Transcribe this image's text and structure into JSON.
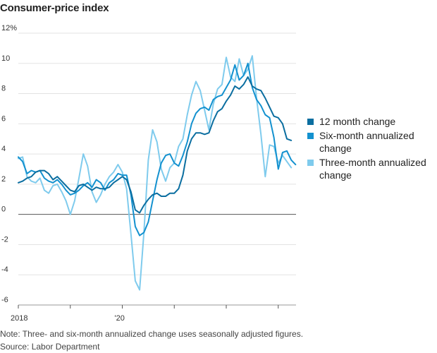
{
  "header": {
    "title": "Consumer-price index"
  },
  "footer": {
    "note": "Note: Three- and six-month annualized change uses seasonally adjusted figures.",
    "source": "Source: Labor Department"
  },
  "chart_data": {
    "type": "line",
    "title": "Consumer-price index",
    "xlabel": "",
    "ylabel": "",
    "x_start": "2018-01",
    "x_end": "2022-12",
    "x_tick_labels": [
      {
        "x": "2018-01",
        "label": "2018"
      },
      {
        "x": "2019-01",
        "label": ""
      },
      {
        "x": "2020-01",
        "label": "'20"
      },
      {
        "x": "2021-01",
        "label": ""
      },
      {
        "x": "2022-01",
        "label": ""
      },
      {
        "x": "2023-01",
        "label": ""
      }
    ],
    "ylim": [
      -6,
      12
    ],
    "y_ticks": [
      {
        "value": 12,
        "label": "12%"
      },
      {
        "value": 10,
        "label": "10"
      },
      {
        "value": 8,
        "label": "8"
      },
      {
        "value": 6,
        "label": "6"
      },
      {
        "value": 4,
        "label": "4"
      },
      {
        "value": 2,
        "label": "2"
      },
      {
        "value": 0,
        "label": "0"
      },
      {
        "value": -2,
        "label": "-2"
      },
      {
        "value": -4,
        "label": "-4"
      },
      {
        "value": -6,
        "label": "-6"
      }
    ],
    "grid": true,
    "legend_position": "right",
    "series": [
      {
        "name": "12 month change",
        "color": "#0b6ea0",
        "values": [
          {
            "x": "2018-01",
            "y": 2.1
          },
          {
            "x": "2018-02",
            "y": 2.2
          },
          {
            "x": "2018-03",
            "y": 2.4
          },
          {
            "x": "2018-04",
            "y": 2.5
          },
          {
            "x": "2018-05",
            "y": 2.8
          },
          {
            "x": "2018-06",
            "y": 2.9
          },
          {
            "x": "2018-07",
            "y": 2.9
          },
          {
            "x": "2018-08",
            "y": 2.7
          },
          {
            "x": "2018-09",
            "y": 2.3
          },
          {
            "x": "2018-10",
            "y": 2.5
          },
          {
            "x": "2018-11",
            "y": 2.2
          },
          {
            "x": "2018-12",
            "y": 1.9
          },
          {
            "x": "2019-01",
            "y": 1.6
          },
          {
            "x": "2019-02",
            "y": 1.5
          },
          {
            "x": "2019-03",
            "y": 1.9
          },
          {
            "x": "2019-04",
            "y": 2.0
          },
          {
            "x": "2019-05",
            "y": 1.8
          },
          {
            "x": "2019-06",
            "y": 1.6
          },
          {
            "x": "2019-07",
            "y": 1.8
          },
          {
            "x": "2019-08",
            "y": 1.7
          },
          {
            "x": "2019-09",
            "y": 1.7
          },
          {
            "x": "2019-10",
            "y": 1.8
          },
          {
            "x": "2019-11",
            "y": 2.1
          },
          {
            "x": "2019-12",
            "y": 2.3
          },
          {
            "x": "2020-01",
            "y": 2.5
          },
          {
            "x": "2020-02",
            "y": 2.3
          },
          {
            "x": "2020-03",
            "y": 1.5
          },
          {
            "x": "2020-04",
            "y": 0.3
          },
          {
            "x": "2020-05",
            "y": 0.1
          },
          {
            "x": "2020-06",
            "y": 0.6
          },
          {
            "x": "2020-07",
            "y": 1.0
          },
          {
            "x": "2020-08",
            "y": 1.3
          },
          {
            "x": "2020-09",
            "y": 1.4
          },
          {
            "x": "2020-10",
            "y": 1.2
          },
          {
            "x": "2020-11",
            "y": 1.2
          },
          {
            "x": "2020-12",
            "y": 1.4
          },
          {
            "x": "2021-01",
            "y": 1.4
          },
          {
            "x": "2021-02",
            "y": 1.7
          },
          {
            "x": "2021-03",
            "y": 2.6
          },
          {
            "x": "2021-04",
            "y": 4.2
          },
          {
            "x": "2021-05",
            "y": 5.0
          },
          {
            "x": "2021-06",
            "y": 5.4
          },
          {
            "x": "2021-07",
            "y": 5.4
          },
          {
            "x": "2021-08",
            "y": 5.3
          },
          {
            "x": "2021-09",
            "y": 5.4
          },
          {
            "x": "2021-10",
            "y": 6.2
          },
          {
            "x": "2021-11",
            "y": 6.8
          },
          {
            "x": "2021-12",
            "y": 7.0
          },
          {
            "x": "2022-01",
            "y": 7.5
          },
          {
            "x": "2022-02",
            "y": 7.9
          },
          {
            "x": "2022-03",
            "y": 8.5
          },
          {
            "x": "2022-04",
            "y": 8.3
          },
          {
            "x": "2022-05",
            "y": 8.6
          },
          {
            "x": "2022-06",
            "y": 9.1
          },
          {
            "x": "2022-07",
            "y": 8.5
          },
          {
            "x": "2022-08",
            "y": 8.3
          },
          {
            "x": "2022-09",
            "y": 8.2
          },
          {
            "x": "2022-10",
            "y": 7.7
          },
          {
            "x": "2022-11",
            "y": 7.1
          },
          {
            "x": "2022-12",
            "y": 6.5
          },
          {
            "x": "2023-01",
            "y": 6.4
          },
          {
            "x": "2023-02",
            "y": 6.0
          },
          {
            "x": "2023-03",
            "y": 5.0
          },
          {
            "x": "2023-04",
            "y": 4.9
          }
        ]
      },
      {
        "name": "Six-month annualized change",
        "color": "#1391cf",
        "values": [
          {
            "x": "2018-01",
            "y": 3.8
          },
          {
            "x": "2018-02",
            "y": 3.5
          },
          {
            "x": "2018-03",
            "y": 2.7
          },
          {
            "x": "2018-04",
            "y": 2.9
          },
          {
            "x": "2018-05",
            "y": 2.8
          },
          {
            "x": "2018-06",
            "y": 2.9
          },
          {
            "x": "2018-07",
            "y": 2.4
          },
          {
            "x": "2018-08",
            "y": 2.2
          },
          {
            "x": "2018-09",
            "y": 2.1
          },
          {
            "x": "2018-10",
            "y": 2.3
          },
          {
            "x": "2018-11",
            "y": 2.0
          },
          {
            "x": "2018-12",
            "y": 1.6
          },
          {
            "x": "2019-01",
            "y": 1.3
          },
          {
            "x": "2019-02",
            "y": 1.4
          },
          {
            "x": "2019-03",
            "y": 1.6
          },
          {
            "x": "2019-04",
            "y": 1.9
          },
          {
            "x": "2019-05",
            "y": 2.1
          },
          {
            "x": "2019-06",
            "y": 1.8
          },
          {
            "x": "2019-07",
            "y": 2.3
          },
          {
            "x": "2019-08",
            "y": 2.1
          },
          {
            "x": "2019-09",
            "y": 1.6
          },
          {
            "x": "2019-10",
            "y": 2.1
          },
          {
            "x": "2019-11",
            "y": 2.3
          },
          {
            "x": "2019-12",
            "y": 2.7
          },
          {
            "x": "2020-01",
            "y": 2.6
          },
          {
            "x": "2020-02",
            "y": 2.6
          },
          {
            "x": "2020-03",
            "y": 1.3
          },
          {
            "x": "2020-04",
            "y": -0.8
          },
          {
            "x": "2020-05",
            "y": -1.4
          },
          {
            "x": "2020-06",
            "y": -1.2
          },
          {
            "x": "2020-07",
            "y": -0.5
          },
          {
            "x": "2020-08",
            "y": 0.9
          },
          {
            "x": "2020-09",
            "y": 2.3
          },
          {
            "x": "2020-10",
            "y": 3.4
          },
          {
            "x": "2020-11",
            "y": 3.9
          },
          {
            "x": "2020-12",
            "y": 4.0
          },
          {
            "x": "2021-01",
            "y": 3.4
          },
          {
            "x": "2021-02",
            "y": 3.2
          },
          {
            "x": "2021-03",
            "y": 3.9
          },
          {
            "x": "2021-04",
            "y": 4.8
          },
          {
            "x": "2021-05",
            "y": 6.0
          },
          {
            "x": "2021-06",
            "y": 6.7
          },
          {
            "x": "2021-07",
            "y": 7.0
          },
          {
            "x": "2021-08",
            "y": 7.1
          },
          {
            "x": "2021-09",
            "y": 6.9
          },
          {
            "x": "2021-10",
            "y": 7.6
          },
          {
            "x": "2021-11",
            "y": 7.8
          },
          {
            "x": "2021-12",
            "y": 7.9
          },
          {
            "x": "2022-01",
            "y": 8.4
          },
          {
            "x": "2022-02",
            "y": 8.9
          },
          {
            "x": "2022-03",
            "y": 9.9
          },
          {
            "x": "2022-04",
            "y": 8.9
          },
          {
            "x": "2022-05",
            "y": 9.2
          },
          {
            "x": "2022-06",
            "y": 10.0
          },
          {
            "x": "2022-07",
            "y": 8.4
          },
          {
            "x": "2022-08",
            "y": 7.6
          },
          {
            "x": "2022-09",
            "y": 7.2
          },
          {
            "x": "2022-10",
            "y": 6.6
          },
          {
            "x": "2022-11",
            "y": 6.4
          },
          {
            "x": "2022-12",
            "y": 5.1
          },
          {
            "x": "2023-01",
            "y": 3.0
          },
          {
            "x": "2023-02",
            "y": 4.1
          },
          {
            "x": "2023-03",
            "y": 4.2
          },
          {
            "x": "2023-04",
            "y": 3.6
          },
          {
            "x": "2023-05",
            "y": 3.3
          }
        ]
      },
      {
        "name": "Three-month annualized change",
        "color": "#7fcbed",
        "values": [
          {
            "x": "2018-01",
            "y": 3.7
          },
          {
            "x": "2018-02",
            "y": 3.8
          },
          {
            "x": "2018-03",
            "y": 2.5
          },
          {
            "x": "2018-04",
            "y": 2.2
          },
          {
            "x": "2018-05",
            "y": 2.1
          },
          {
            "x": "2018-06",
            "y": 2.4
          },
          {
            "x": "2018-07",
            "y": 1.6
          },
          {
            "x": "2018-08",
            "y": 1.4
          },
          {
            "x": "2018-09",
            "y": 1.9
          },
          {
            "x": "2018-10",
            "y": 2.0
          },
          {
            "x": "2018-11",
            "y": 1.5
          },
          {
            "x": "2018-12",
            "y": 0.9
          },
          {
            "x": "2019-01",
            "y": 0.0
          },
          {
            "x": "2019-02",
            "y": 0.9
          },
          {
            "x": "2019-03",
            "y": 2.4
          },
          {
            "x": "2019-04",
            "y": 4.0
          },
          {
            "x": "2019-05",
            "y": 3.2
          },
          {
            "x": "2019-06",
            "y": 1.5
          },
          {
            "x": "2019-07",
            "y": 0.8
          },
          {
            "x": "2019-08",
            "y": 1.3
          },
          {
            "x": "2019-09",
            "y": 2.0
          },
          {
            "x": "2019-10",
            "y": 2.5
          },
          {
            "x": "2019-11",
            "y": 2.8
          },
          {
            "x": "2019-12",
            "y": 3.3
          },
          {
            "x": "2020-01",
            "y": 2.8
          },
          {
            "x": "2020-02",
            "y": 1.7
          },
          {
            "x": "2020-03",
            "y": -1.3
          },
          {
            "x": "2020-04",
            "y": -4.4
          },
          {
            "x": "2020-05",
            "y": -5.0
          },
          {
            "x": "2020-06",
            "y": -1.2
          },
          {
            "x": "2020-07",
            "y": 3.6
          },
          {
            "x": "2020-08",
            "y": 5.6
          },
          {
            "x": "2020-09",
            "y": 4.8
          },
          {
            "x": "2020-10",
            "y": 3.0
          },
          {
            "x": "2020-11",
            "y": 2.2
          },
          {
            "x": "2020-12",
            "y": 3.1
          },
          {
            "x": "2021-01",
            "y": 3.4
          },
          {
            "x": "2021-02",
            "y": 4.5
          },
          {
            "x": "2021-03",
            "y": 5.0
          },
          {
            "x": "2021-04",
            "y": 6.6
          },
          {
            "x": "2021-05",
            "y": 7.9
          },
          {
            "x": "2021-06",
            "y": 8.8
          },
          {
            "x": "2021-07",
            "y": 8.2
          },
          {
            "x": "2021-08",
            "y": 6.9
          },
          {
            "x": "2021-09",
            "y": 5.6
          },
          {
            "x": "2021-10",
            "y": 7.3
          },
          {
            "x": "2021-11",
            "y": 8.3
          },
          {
            "x": "2021-12",
            "y": 8.6
          },
          {
            "x": "2022-01",
            "y": 10.4
          },
          {
            "x": "2022-02",
            "y": 9.1
          },
          {
            "x": "2022-03",
            "y": 8.8
          },
          {
            "x": "2022-04",
            "y": 10.3
          },
          {
            "x": "2022-05",
            "y": 9.2
          },
          {
            "x": "2022-06",
            "y": 9.6
          },
          {
            "x": "2022-07",
            "y": 10.5
          },
          {
            "x": "2022-08",
            "y": 7.7
          },
          {
            "x": "2022-09",
            "y": 5.3
          },
          {
            "x": "2022-10",
            "y": 2.5
          },
          {
            "x": "2022-11",
            "y": 4.6
          },
          {
            "x": "2022-12",
            "y": 4.5
          },
          {
            "x": "2023-01",
            "y": 3.4
          },
          {
            "x": "2023-02",
            "y": 3.9
          },
          {
            "x": "2023-03",
            "y": 3.5
          },
          {
            "x": "2023-04",
            "y": 3.1
          }
        ]
      }
    ]
  }
}
